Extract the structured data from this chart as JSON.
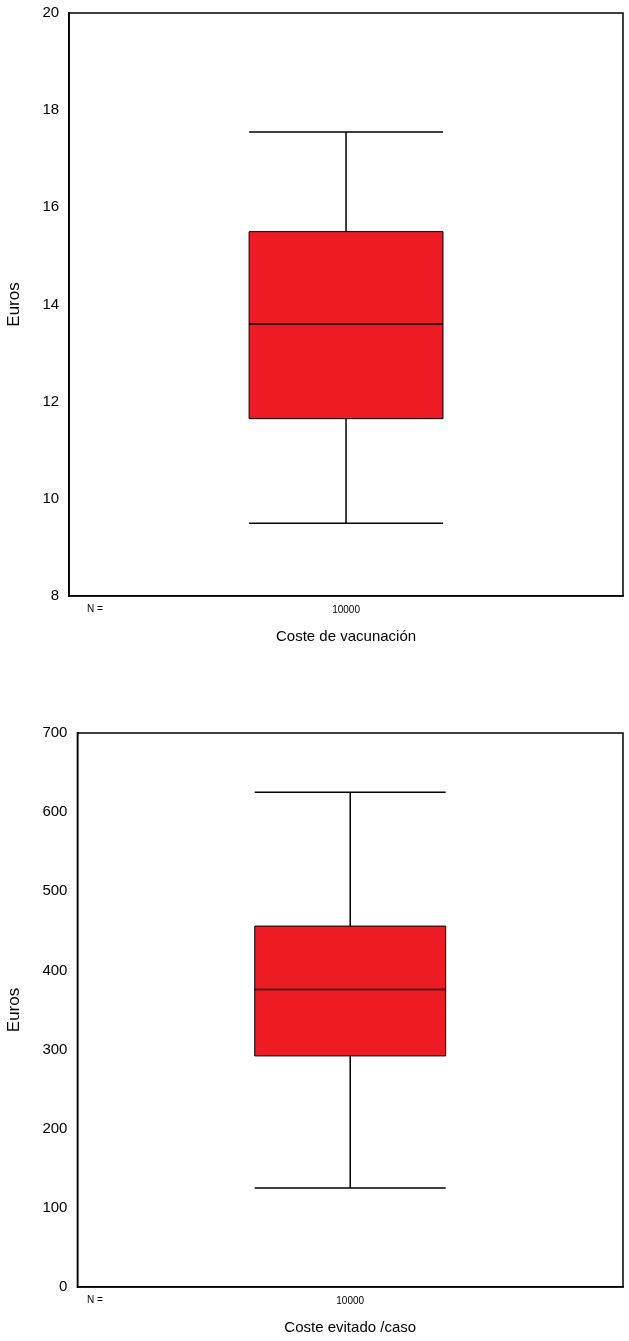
{
  "chart_data": [
    {
      "type": "box",
      "categories": [
        "10000"
      ],
      "xlabel": "Coste de vacunación",
      "ylabel": "Euros",
      "ylim": [
        8,
        20
      ],
      "yticks": [
        8,
        10,
        12,
        14,
        16,
        18,
        20
      ],
      "grid": false,
      "color": "#ed1c24",
      "boxes": [
        {
          "low": 9.5,
          "q1": 11.65,
          "median": 13.6,
          "q3": 15.5,
          "high": 17.55
        }
      ],
      "annotations": [
        "N ="
      ]
    },
    {
      "type": "box",
      "categories": [
        "10000"
      ],
      "xlabel": "Coste evitado /caso",
      "ylabel": "Euros",
      "ylim": [
        0,
        700
      ],
      "yticks": [
        0,
        100,
        200,
        300,
        400,
        500,
        600,
        700
      ],
      "grid": false,
      "color": "#ed1c24",
      "boxes": [
        {
          "low": 125,
          "q1": 292,
          "median": 376,
          "q3": 456,
          "high": 625
        }
      ],
      "annotations": [
        "N ="
      ]
    }
  ]
}
